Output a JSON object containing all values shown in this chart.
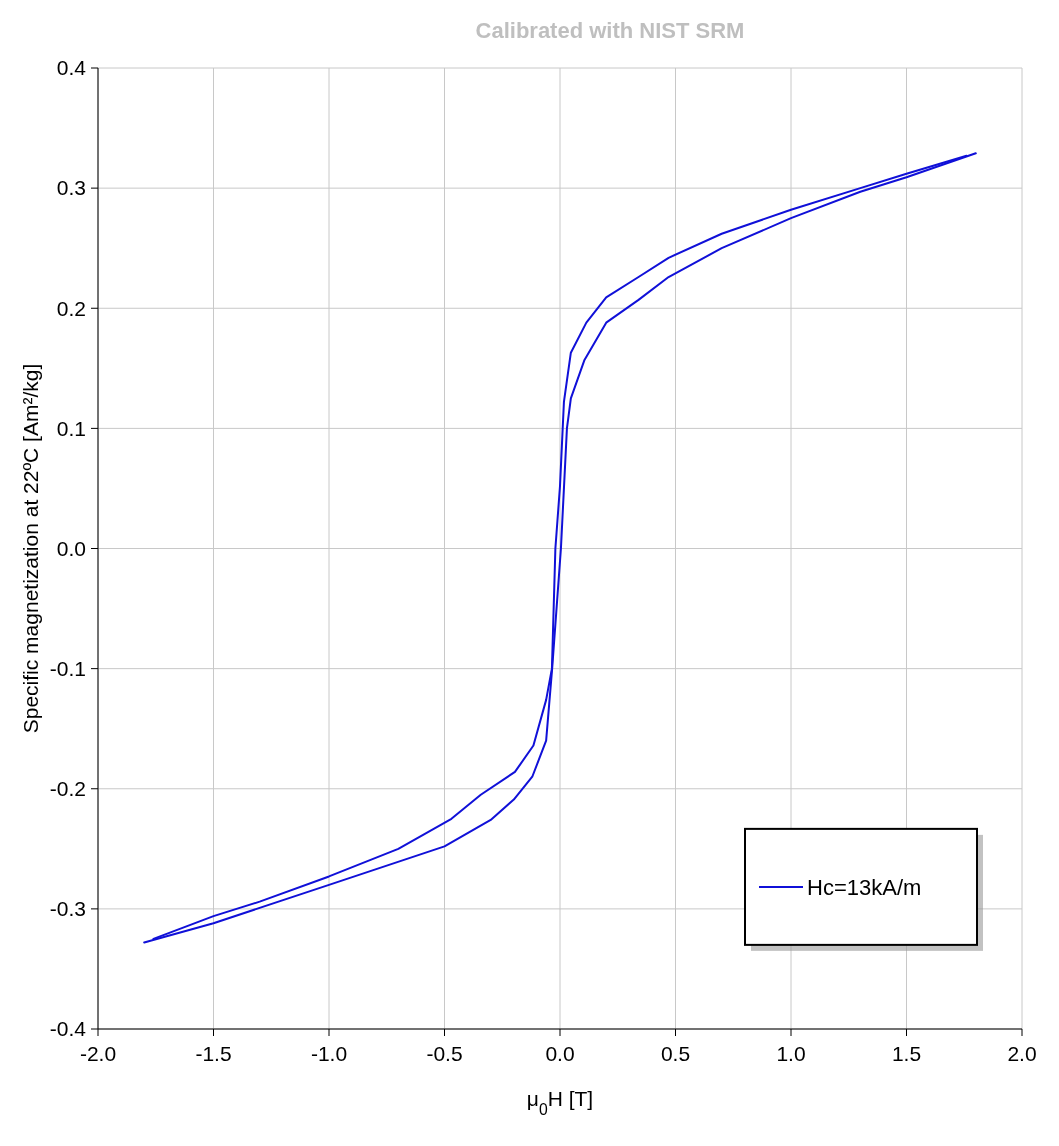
{
  "chart_data": {
    "type": "line",
    "title": "Calibrated with NIST SRM",
    "xlabel": "μ$_{0}$H [T]",
    "ylabel": "Specific magnetization at 22ºC [Am²/kg]",
    "xlim": [
      -2,
      2
    ],
    "ylim": [
      -0.4,
      0.4
    ],
    "xticks": [
      {
        "value": -2,
        "label": "-2.0"
      },
      {
        "value": -1.5,
        "label": "-1.5"
      },
      {
        "value": -1,
        "label": "-1.0"
      },
      {
        "value": -0.5,
        "label": "-0.5"
      },
      {
        "value": 0,
        "label": "0.0"
      },
      {
        "value": 0.5,
        "label": "0.5"
      },
      {
        "value": 1,
        "label": "1.0"
      },
      {
        "value": 1.5,
        "label": "1.5"
      },
      {
        "value": 2,
        "label": "2.0"
      }
    ],
    "yticks": [
      {
        "value": -0.4,
        "label": "-0.4"
      },
      {
        "value": -0.3,
        "label": "-0.3"
      },
      {
        "value": -0.2,
        "label": "-0.2"
      },
      {
        "value": -0.1,
        "label": "-0.1"
      },
      {
        "value": 0,
        "label": "0.0"
      },
      {
        "value": 0.1,
        "label": "0.1"
      },
      {
        "value": 0.2,
        "label": "0.2"
      },
      {
        "value": 0.3,
        "label": "0.3"
      },
      {
        "value": 0.4,
        "label": "0.4"
      }
    ],
    "grid": true,
    "legend": "bottom right",
    "line_style": "solid",
    "series": [
      {
        "name": "Hc=13kA/m",
        "color": "#1010d8",
        "x": [
          -1.8,
          -1.5,
          -1.0,
          -0.5,
          -0.3,
          -0.2,
          -0.12,
          -0.06,
          -0.034,
          0.004,
          0.03,
          0.047,
          0.106,
          0.2,
          0.34,
          0.47,
          0.7,
          1.0,
          1.3,
          1.5,
          1.8
        ],
        "values": [
          -0.328,
          -0.312,
          -0.28,
          -0.248,
          -0.226,
          -0.209,
          -0.19,
          -0.16,
          -0.1,
          0.0,
          0.1,
          0.125,
          0.157,
          0.188,
          0.207,
          0.226,
          0.25,
          0.275,
          0.297,
          0.309,
          0.329
        ]
      },
      {
        "color": "#1010d8",
        "x": [
          1.76,
          1.5,
          1.3,
          1.0,
          0.7,
          0.47,
          0.34,
          0.2,
          0.114,
          0.047,
          0.017,
          0.0,
          -0.02,
          -0.035,
          -0.06,
          -0.115,
          -0.195,
          -0.343,
          -0.47,
          -0.7,
          -1.0,
          -1.3,
          -1.5,
          -1.76
        ],
        "values": [
          0.327,
          0.312,
          0.3,
          0.282,
          0.262,
          0.242,
          0.226,
          0.209,
          0.188,
          0.163,
          0.122,
          0.052,
          0.0,
          -0.1,
          -0.126,
          -0.164,
          -0.186,
          -0.205,
          -0.225,
          -0.25,
          -0.273,
          -0.294,
          -0.306,
          -0.325
        ]
      }
    ]
  }
}
